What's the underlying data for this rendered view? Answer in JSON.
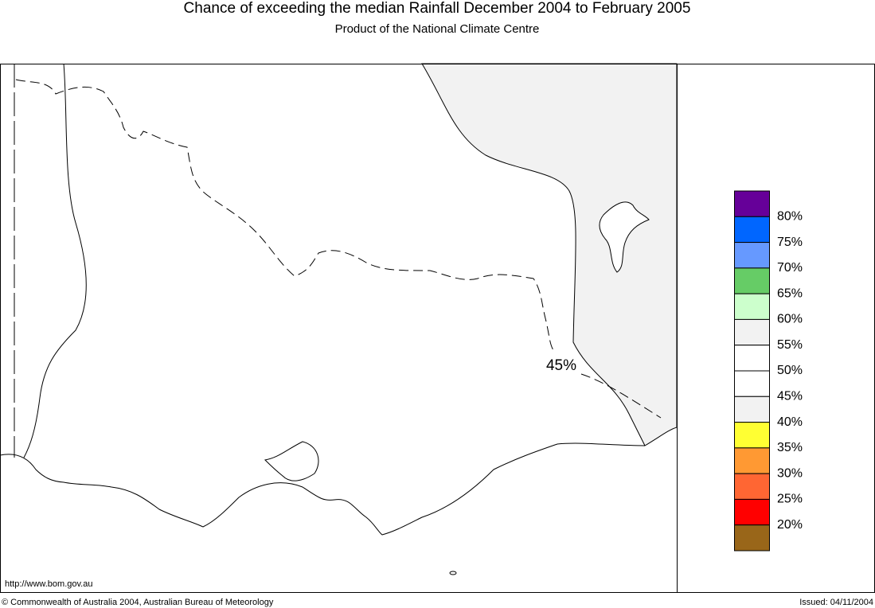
{
  "header": {
    "title": "Chance of exceeding the median Rainfall December 2004 to February 2005",
    "subtitle": "Product of the National Climate Centre"
  },
  "map": {
    "contour_label": "45%"
  },
  "legend": {
    "labels": [
      "80%",
      "75%",
      "70%",
      "65%",
      "60%",
      "55%",
      "50%",
      "45%",
      "40%",
      "35%",
      "30%",
      "25%",
      "20%"
    ],
    "colors": [
      "#660099",
      "#0066ff",
      "#6699ff",
      "#66cc66",
      "#ccffcc",
      "#f2f2f2",
      "#ffffff",
      "#ffffff",
      "#f2f2f2",
      "#ffff33",
      "#ff9933",
      "#ff6633",
      "#ff0000",
      "#996619"
    ]
  },
  "footer": {
    "url": "http://www.bom.gov.au",
    "copyright": "© Commonwealth of Australia 2004, Australian Bureau of Meteorology",
    "issued": "Issued: 04/11/2004"
  }
}
